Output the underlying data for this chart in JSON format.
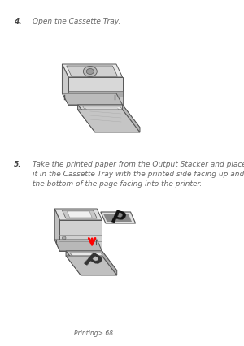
{
  "bg_color": "#ffffff",
  "step4_number": "4.",
  "step4_text": "Open the Cassette Tray.",
  "step5_number": "5.",
  "step5_line1": "Take the printed paper from the Output Stacker and place",
  "step5_line2": "it in the Cassette Tray with the printed side facing up and",
  "step5_line3": "the bottom of the page facing into the printer.",
  "footer_text": "Printing> 68",
  "text_color": "#666666",
  "step_num_color": "#444444",
  "font_size_step": 6.5,
  "font_size_footer": 5.5
}
